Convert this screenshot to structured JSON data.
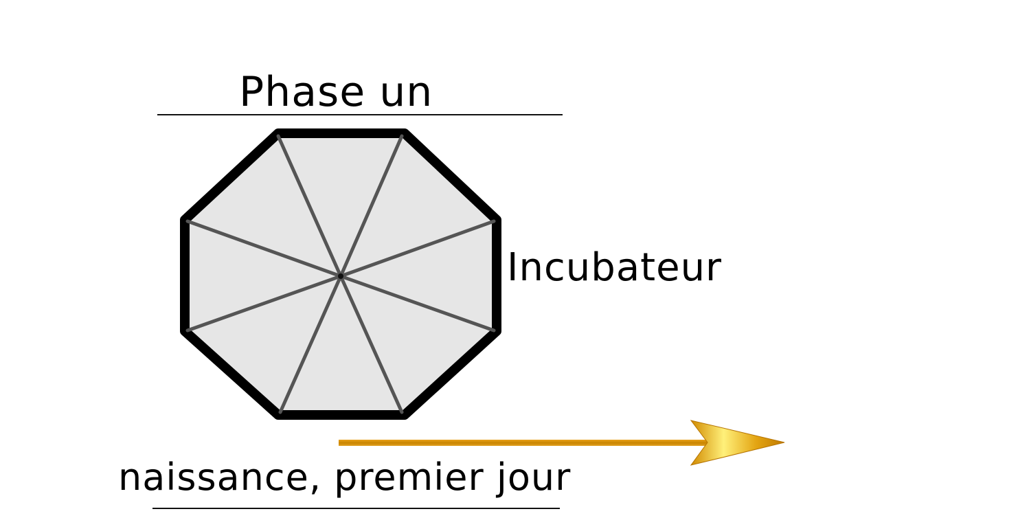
{
  "diagram": {
    "title": "Phase un",
    "side_label": "Incubateur",
    "bottom_label": "naissance, premier jour"
  },
  "colors": {
    "octagon_fill": "#e6e6e6",
    "octagon_stroke": "#000000",
    "spoke_stroke": "#555555",
    "arrow_gold": "#d4920a",
    "arrow_highlight": "#fff07a",
    "text": "#000000"
  }
}
